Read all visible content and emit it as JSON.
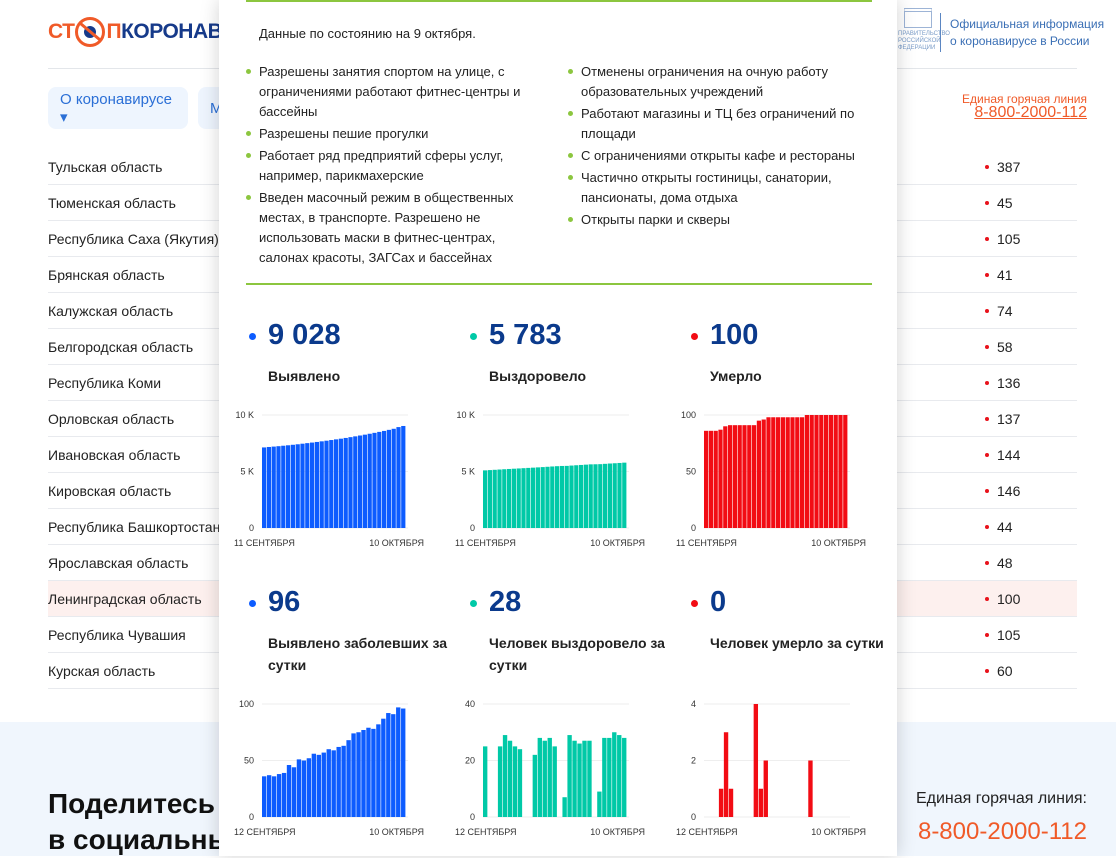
{
  "header": {
    "logo_text": "СТОПКОРОНАВИРУС",
    "gov_logo_text": "ПРАВИТЕЛЬСТВО РОССИЙСКОЙ ФЕДЕРАЦИИ",
    "official_line1": "Официальная информация",
    "official_line2": "о коронавирусе в России",
    "hotline_label": "Единая горячая линия",
    "hotline_number": "8-800-2000-112"
  },
  "nav": [
    {
      "label": "О коронавирусе ▾"
    },
    {
      "label": "М"
    }
  ],
  "regions": [
    {
      "name": "Тульская область",
      "value": "387"
    },
    {
      "name": "Тюменская область",
      "value": "45"
    },
    {
      "name": "Республика Саха (Якутия)",
      "value": "105"
    },
    {
      "name": "Брянская область",
      "value": "41"
    },
    {
      "name": "Калужская область",
      "value": "74"
    },
    {
      "name": "Белгородская область",
      "value": "58"
    },
    {
      "name": "Республика Коми",
      "value": "136"
    },
    {
      "name": "Орловская область",
      "value": "137"
    },
    {
      "name": "Ивановская область",
      "value": "144"
    },
    {
      "name": "Кировская область",
      "value": "146"
    },
    {
      "name": "Республика Башкортостан",
      "value": "44"
    },
    {
      "name": "Ярославская область",
      "value": "48"
    },
    {
      "name": "Ленинградская область",
      "value": "100"
    },
    {
      "name": "Республика Чувашия",
      "value": "105"
    },
    {
      "name": "Курская область",
      "value": "60"
    }
  ],
  "footer": {
    "share_line1": "Поделитесь в",
    "share_line2": "в социальных сетях",
    "hotline_label": "Единая горячая линия:",
    "hotline_number": "8-800-2000-112"
  },
  "modal": {
    "as_of": "Данные по состоянию на 9 октября.",
    "left_items": [
      "Разрешены занятия спортом на улице, с ограничениями работают фитнес-центры и бассейны",
      "Разрешены пешие прогулки",
      "Работает ряд предприятий сферы услуг, например, парикмахерские",
      "Введен масочный режим в общественных местах, в транспорте. Разрешено не использовать маски в фитнес-центрах, салонах красоты, ЗАГСах и бассейнах"
    ],
    "right_items": [
      "Отменены ограничения на очную работу образовательных учреждений",
      "Работают магазины и ТЦ без ограничений по площади",
      "С ограничениями открыты кафе и рестораны",
      "Частично открыты гостиницы, санатории, пансионаты, дома отдыха",
      "Открыты парки и скверы"
    ],
    "stats": [
      {
        "value": "9 028",
        "label": "Выявлено"
      },
      {
        "value": "5 783",
        "label": "Выздоровело"
      },
      {
        "value": "100",
        "label": "Умерло"
      },
      {
        "value": "96",
        "label": "Выявлено заболевших за сутки"
      },
      {
        "value": "28",
        "label": "Человек выздоровело за сутки"
      },
      {
        "value": "0",
        "label": "Человек умерло за сутки"
      }
    ]
  },
  "colors": {
    "cases": "#0d5cff",
    "recovered": "#00c9a7",
    "deaths": "#f20c14",
    "accent": "#8cc63f",
    "hotline": "#f05a28"
  },
  "chart_data": [
    {
      "type": "bar",
      "title": "Выявлено",
      "ylim": [
        0,
        10000
      ],
      "yticks": [
        "0",
        "5 K",
        "10 K"
      ],
      "ytick_values": [
        0,
        5000,
        10000
      ],
      "x_start": "11 СЕНТЯБРЯ",
      "x_end": "10 ОКТЯБРЯ",
      "color": "#0d5cff",
      "values": [
        7130,
        7170,
        7205,
        7240,
        7280,
        7320,
        7365,
        7410,
        7460,
        7510,
        7560,
        7615,
        7670,
        7725,
        7785,
        7845,
        7905,
        7970,
        8040,
        8110,
        8185,
        8260,
        8340,
        8420,
        8505,
        8590,
        8685,
        8780,
        8930,
        9028
      ]
    },
    {
      "type": "bar",
      "title": "Выздоровело",
      "ylim": [
        0,
        10000
      ],
      "yticks": [
        "0",
        "5 K",
        "10 K"
      ],
      "ytick_values": [
        0,
        5000,
        10000
      ],
      "x_start": "11 СЕНТЯБРЯ",
      "x_end": "10 ОКТЯБРЯ",
      "color": "#00c9a7",
      "values": [
        5100,
        5125,
        5150,
        5175,
        5200,
        5224,
        5247,
        5270,
        5294,
        5318,
        5340,
        5365,
        5390,
        5417,
        5445,
        5470,
        5490,
        5497,
        5526,
        5553,
        5579,
        5606,
        5633,
        5640,
        5650,
        5678,
        5706,
        5730,
        5755,
        5783
      ]
    },
    {
      "type": "bar",
      "title": "Умерло",
      "ylim": [
        0,
        100
      ],
      "yticks": [
        "0",
        "50",
        "100"
      ],
      "ytick_values": [
        0,
        50,
        100
      ],
      "x_start": "11 СЕНТЯБРЯ",
      "x_end": "10 ОКТЯБРЯ",
      "color": "#f20c14",
      "values": [
        86,
        86,
        86,
        87,
        90,
        91,
        91,
        91,
        91,
        91,
        91,
        95,
        96,
        98,
        98,
        98,
        98,
        98,
        98,
        98,
        98,
        100,
        100,
        100,
        100,
        100,
        100,
        100,
        100,
        100
      ]
    },
    {
      "type": "bar",
      "title": "Выявлено заболевших за сутки",
      "ylim": [
        0,
        100
      ],
      "yticks": [
        "0",
        "50",
        "100"
      ],
      "ytick_values": [
        0,
        50,
        100
      ],
      "x_start": "12 СЕНТЯБРЯ",
      "x_end": "10 ОКТЯБРЯ",
      "color": "#0d5cff",
      "values": [
        36,
        37,
        36,
        38,
        39,
        46,
        44,
        51,
        50,
        52,
        56,
        55,
        57,
        60,
        59,
        62,
        63,
        68,
        74,
        75,
        77,
        79,
        78,
        82,
        87,
        92,
        91,
        97,
        96
      ]
    },
    {
      "type": "bar",
      "title": "Человек выздоровело за сутки",
      "ylim": [
        0,
        40
      ],
      "yticks": [
        "0",
        "20",
        "40"
      ],
      "ytick_values": [
        0,
        20,
        40
      ],
      "x_start": "12 СЕНТЯБРЯ",
      "x_end": "10 ОКТЯБРЯ",
      "color": "#00c9a7",
      "values": [
        25,
        0,
        0,
        25,
        29,
        27,
        25,
        24,
        0,
        0,
        22,
        28,
        27,
        28,
        25,
        0,
        7,
        29,
        27,
        26,
        27,
        27,
        0,
        9,
        28,
        28,
        30,
        29,
        28
      ]
    },
    {
      "type": "bar",
      "title": "Человек умерло за сутки",
      "ylim": [
        0,
        4
      ],
      "yticks": [
        "0",
        "2",
        "4"
      ],
      "ytick_values": [
        0,
        2,
        4
      ],
      "x_start": "12 СЕНТЯБРЯ",
      "x_end": "10 ОКТЯБРЯ",
      "color": "#f20c14",
      "values": [
        0,
        0,
        0,
        1,
        3,
        1,
        0,
        0,
        0,
        0,
        4,
        1,
        2,
        0,
        0,
        0,
        0,
        0,
        0,
        0,
        0,
        2,
        0,
        0,
        0,
        0,
        0,
        0,
        0
      ]
    }
  ]
}
